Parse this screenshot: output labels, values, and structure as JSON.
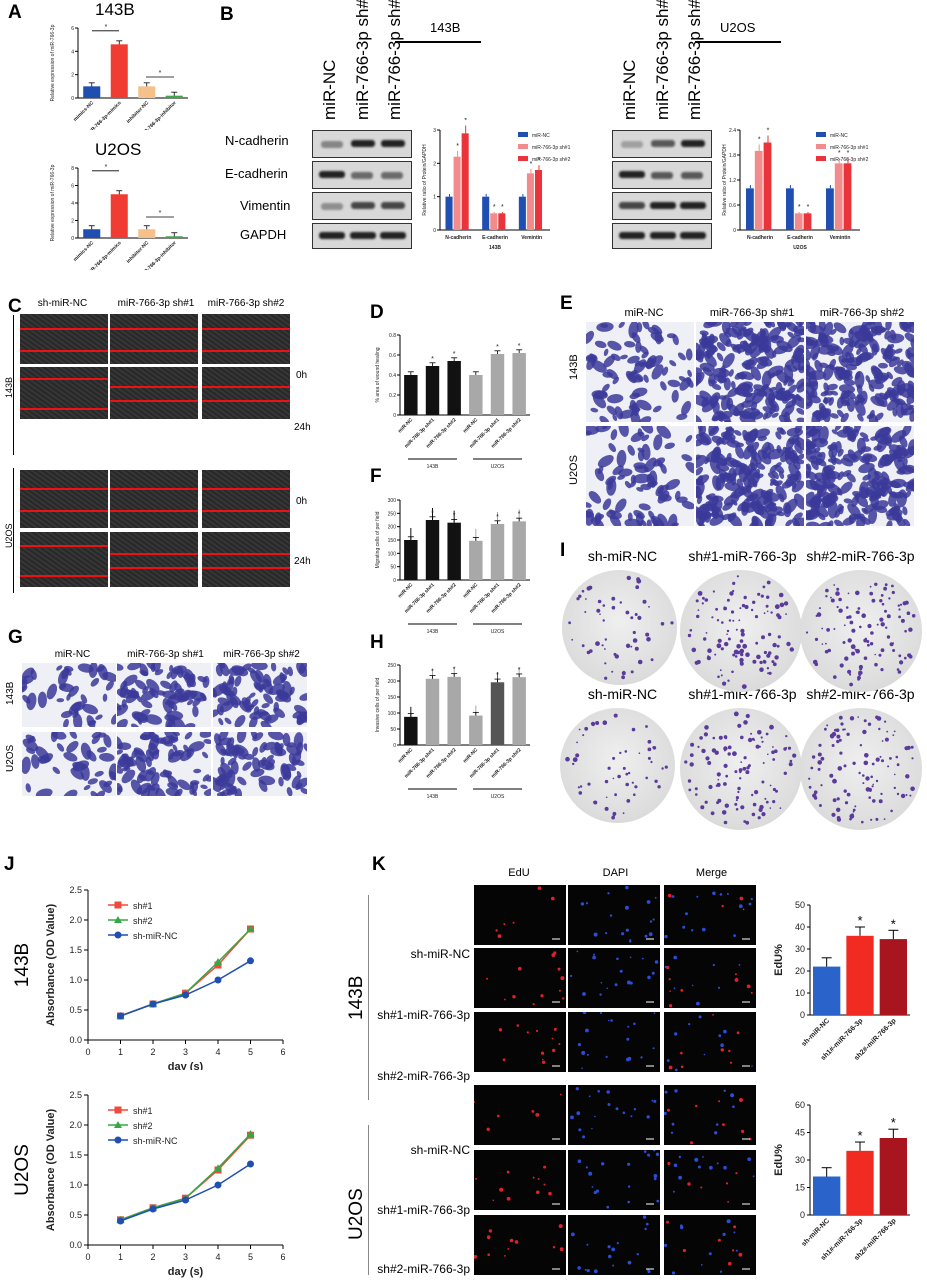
{
  "panels": {
    "A": {
      "label": "A",
      "titles": [
        "143B",
        "U2OS"
      ],
      "ylabel": "Relative expression of miR-766-3p",
      "categories": [
        "mimics-NC",
        "miR-766-3p-mimics",
        "inhibitor-NC",
        "miR-766-3p-inhibitor"
      ],
      "star": "*"
    },
    "B": {
      "label": "B",
      "cell_lines": [
        "143B",
        "U2OS"
      ],
      "lanes": [
        "miR-NC",
        "miR-766-3p sh#1",
        "miR-766-3p sh#2"
      ],
      "proteins": [
        "N-cadherin",
        "E-cadherin",
        "Vimentin",
        "GAPDH"
      ],
      "ylabel": "Relative ratio of Protein/GAPDH",
      "legend": [
        "miR-NC",
        "miR-766-3p sh#1",
        "miR-766-3p sh#2"
      ],
      "groups": [
        "N-cadherin",
        "E-cadherin",
        "Vemintin"
      ]
    },
    "C": {
      "label": "C",
      "columns": [
        "sh-miR-NC",
        "miR-766-3p sh#1",
        "miR-766-3p sh#2"
      ],
      "rows": [
        "143B",
        "U2OS"
      ],
      "times": [
        "0h",
        "24h"
      ]
    },
    "D": {
      "label": "D",
      "ylabel": "% area of wound healing",
      "categories": [
        "miR-NC",
        "miR-766-3p sh#1",
        "miR-766-3p sh#2",
        "miR-NC",
        "miR-766-3p sh#1",
        "miR-766-3p sh#2"
      ],
      "groups": [
        "143B",
        "U2OS"
      ]
    },
    "E": {
      "label": "E",
      "columns": [
        "miR-NC",
        "miR-766-3p sh#1",
        "miR-766-3p sh#2"
      ],
      "rows": [
        "143B",
        "U2OS"
      ]
    },
    "F": {
      "label": "F",
      "ylabel": "Migrating cells of per field",
      "groups": [
        "143B",
        "U2OS"
      ]
    },
    "G": {
      "label": "G",
      "columns": [
        "miR-NC",
        "miR-766-3p sh#1",
        "miR-766-3p sh#2"
      ],
      "rows": [
        "143B",
        "U2OS"
      ]
    },
    "H": {
      "label": "H",
      "ylabel": "Invasive cells of per field",
      "groups": [
        "143B",
        "U2OS"
      ]
    },
    "I": {
      "label": "I",
      "columns": [
        "sh-miR-NC",
        "sh#1-miR-766-3p",
        "sh#2-miR-766-3p"
      ]
    },
    "J": {
      "label": "J",
      "rows": [
        "143B",
        "U2OS"
      ],
      "ylabel": "Absorbance (OD Value)",
      "xlabel": "day (s)",
      "legend": [
        "sh#1",
        "sh#2",
        "sh-miR-NC"
      ]
    },
    "K": {
      "label": "K",
      "columns": [
        "EdU",
        "DAPI",
        "Merge"
      ],
      "rows": [
        "143B",
        "U2OS"
      ],
      "row_labels": [
        "sh-miR-NC",
        "sh#1-miR-766-3p",
        "sh#2-miR-766-3p"
      ],
      "ylabel": "EdU%",
      "categories": [
        "sh-miR-NC",
        "sh1#-miR-766-3p",
        "sh2#-miR-766-3p"
      ]
    }
  },
  "chart_data": [
    {
      "type": "bar",
      "panel": "A-143B",
      "categories": [
        "mimics-NC",
        "miR-766-3p-mimics",
        "inhibitor-NC",
        "miR-766-3p-inhibitor"
      ],
      "values": [
        1.0,
        4.6,
        1.0,
        0.2
      ],
      "ylim": [
        0,
        6
      ],
      "yticks": [
        0,
        2,
        4,
        6
      ],
      "colors": [
        "#1f4fb0",
        "#f03c32",
        "#f6c08a",
        "#3fa64a"
      ]
    },
    {
      "type": "bar",
      "panel": "A-U2OS",
      "categories": [
        "mimics-NC",
        "miR-766-3p-mimics",
        "inhibitor-NC",
        "miR-766-3p-inhibitor"
      ],
      "values": [
        1.0,
        5.0,
        1.0,
        0.2
      ],
      "ylim": [
        0,
        8
      ],
      "yticks": [
        0,
        2,
        4,
        6,
        8
      ],
      "colors": [
        "#1f4fb0",
        "#f03c32",
        "#f6c08a",
        "#3fa64a"
      ]
    },
    {
      "type": "bar",
      "panel": "B-143B",
      "xlabel": "143B",
      "categories": [
        "N-cadherin",
        "E-cadherin",
        "Vemintin"
      ],
      "series": [
        {
          "name": "miR-NC",
          "values": [
            1.0,
            1.0,
            1.0
          ]
        },
        {
          "name": "miR-766-3p sh#1",
          "values": [
            2.2,
            0.5,
            1.7
          ]
        },
        {
          "name": "miR-766-3p sh#2",
          "values": [
            2.9,
            0.5,
            1.8
          ]
        }
      ],
      "ylim": [
        0,
        3
      ],
      "yticks": [
        0,
        1,
        2,
        3
      ],
      "colors": [
        "#1f4fb0",
        "#f28b8b",
        "#e8343a"
      ]
    },
    {
      "type": "bar",
      "panel": "B-U2OS",
      "xlabel": "U2OS",
      "categories": [
        "N-cadherin",
        "E-cadherin",
        "Vemintin"
      ],
      "series": [
        {
          "name": "miR-NC",
          "values": [
            1.0,
            1.0,
            1.0
          ]
        },
        {
          "name": "miR-766-3p sh#1",
          "values": [
            1.9,
            0.4,
            1.6
          ]
        },
        {
          "name": "miR-766-3p sh#2",
          "values": [
            2.1,
            0.4,
            1.6
          ]
        }
      ],
      "ylim": [
        0,
        2.4
      ],
      "yticks": [
        0,
        0.6,
        1.2,
        1.8,
        2.4
      ],
      "colors": [
        "#1f4fb0",
        "#f28b8b",
        "#e8343a"
      ]
    },
    {
      "type": "bar",
      "panel": "D",
      "categories": [
        "miR-NC",
        "miR-766-3p sh#1",
        "miR-766-3p sh#2",
        "miR-NC",
        "miR-766-3p sh#1",
        "miR-766-3p sh#2"
      ],
      "values": [
        0.4,
        0.49,
        0.54,
        0.4,
        0.61,
        0.62
      ],
      "ylim": [
        0,
        0.8
      ],
      "yticks": [
        0,
        0.2,
        0.4,
        0.6,
        0.8
      ],
      "colors": [
        "#111",
        "#111",
        "#111",
        "#a8a8a8",
        "#a8a8a8",
        "#a8a8a8"
      ]
    },
    {
      "type": "bar",
      "panel": "F",
      "categories": [
        "miR-NC",
        "miR-766-3p sh#1",
        "miR-766-3p sh#2",
        "miR-NC",
        "miR-766-3p sh#1",
        "miR-766-3p sh#2"
      ],
      "values": [
        150,
        225,
        215,
        147,
        210,
        220
      ],
      "ylim": [
        0,
        300
      ],
      "yticks": [
        0,
        50,
        100,
        150,
        200,
        250,
        300
      ],
      "colors": [
        "#111",
        "#111",
        "#111",
        "#a8a8a8",
        "#a8a8a8",
        "#a8a8a8"
      ]
    },
    {
      "type": "bar",
      "panel": "H",
      "categories": [
        "miR-NC",
        "miR-766-3p sh#1",
        "miR-766-3p sh#2",
        "miR-NC",
        "miR-766-3p sh#1",
        "miR-766-3p sh#2"
      ],
      "values": [
        88,
        207,
        213,
        92,
        196,
        212
      ],
      "ylim": [
        0,
        250
      ],
      "yticks": [
        0,
        50,
        100,
        150,
        200,
        250
      ],
      "colors": [
        "#111",
        "#a8a8a8",
        "#a8a8a8",
        "#a8a8a8",
        "#555",
        "#a8a8a8"
      ]
    },
    {
      "type": "line",
      "panel": "J-143B",
      "x": [
        1,
        2,
        3,
        4,
        5
      ],
      "series": [
        {
          "name": "sh#1",
          "values": [
            0.4,
            0.6,
            0.78,
            1.25,
            1.85
          ]
        },
        {
          "name": "sh#2",
          "values": [
            0.4,
            0.6,
            0.78,
            1.3,
            1.85
          ]
        },
        {
          "name": "sh-miR-NC",
          "values": [
            0.4,
            0.6,
            0.75,
            1.0,
            1.32
          ]
        }
      ],
      "xlim": [
        0,
        6
      ],
      "ylim": [
        0,
        2.5
      ],
      "yticks": [
        0,
        0.5,
        1.0,
        1.5,
        2.0,
        2.5
      ],
      "xticks": [
        0,
        1,
        2,
        3,
        4,
        5,
        6
      ],
      "colors": [
        "#f04a3c",
        "#35a844",
        "#1f4fb0"
      ]
    },
    {
      "type": "line",
      "panel": "J-U2OS",
      "x": [
        1,
        2,
        3,
        4,
        5
      ],
      "series": [
        {
          "name": "sh#1",
          "values": [
            0.42,
            0.62,
            0.78,
            1.25,
            1.83
          ]
        },
        {
          "name": "sh#2",
          "values": [
            0.42,
            0.62,
            0.78,
            1.28,
            1.85
          ]
        },
        {
          "name": "sh-miR-NC",
          "values": [
            0.4,
            0.6,
            0.75,
            1.0,
            1.35
          ]
        }
      ],
      "xlim": [
        0,
        6
      ],
      "ylim": [
        0,
        2.5
      ],
      "yticks": [
        0,
        0.5,
        1.0,
        1.5,
        2.0,
        2.5
      ],
      "xticks": [
        0,
        1,
        2,
        3,
        4,
        5,
        6
      ],
      "colors": [
        "#f04a3c",
        "#35a844",
        "#1f4fb0"
      ]
    },
    {
      "type": "bar",
      "panel": "K-143B",
      "categories": [
        "sh-miR-NC",
        "sh1#-miR-766-3p",
        "sh2#-miR-766-3p"
      ],
      "values": [
        22,
        36,
        34.5
      ],
      "ylim": [
        0,
        50
      ],
      "yticks": [
        0,
        10,
        20,
        30,
        40,
        50
      ],
      "colors": [
        "#2a63c9",
        "#f22b22",
        "#a8151e"
      ]
    },
    {
      "type": "bar",
      "panel": "K-U2OS",
      "categories": [
        "sh-miR-NC",
        "sh1#-miR-766-3p",
        "sh2#-miR-766-3p"
      ],
      "values": [
        21,
        35,
        42
      ],
      "ylim": [
        0,
        60
      ],
      "yticks": [
        0,
        15,
        30,
        45,
        60
      ],
      "colors": [
        "#2a63c9",
        "#f22b22",
        "#a8151e"
      ]
    }
  ]
}
